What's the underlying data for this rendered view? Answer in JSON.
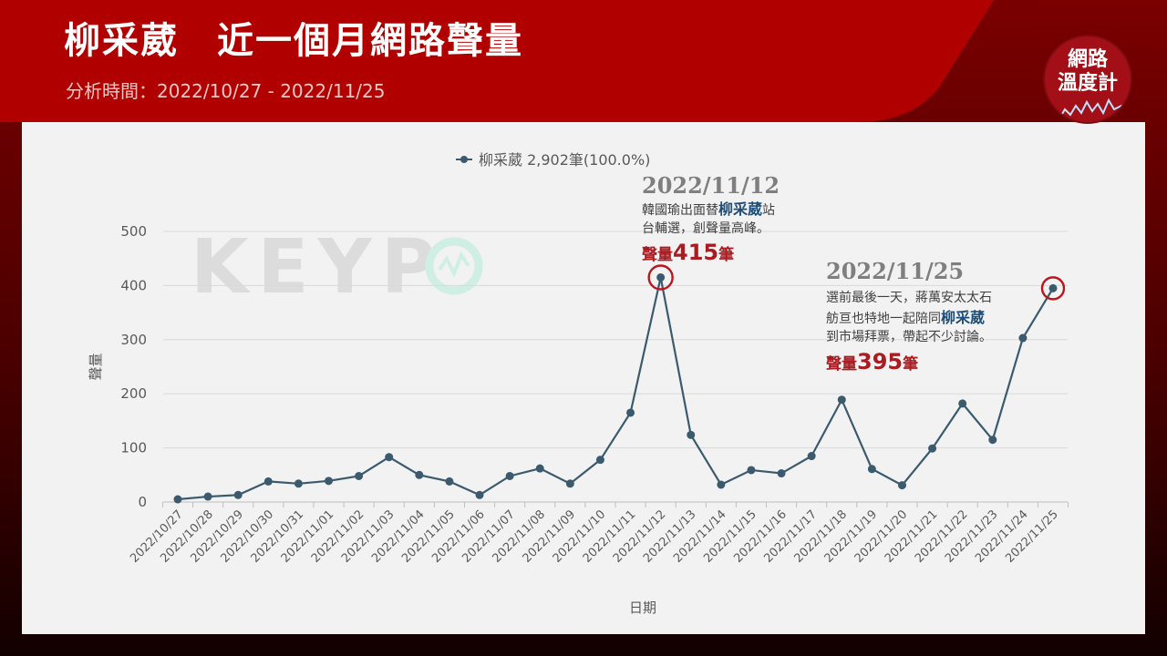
{
  "header": {
    "title": "柳采葳　近一個月網路聲量",
    "subtitle": "分析時間：2022/10/27 - 2022/11/25"
  },
  "badge": {
    "line1": "網路",
    "line2": "溫度計"
  },
  "watermark": {
    "text": "KEYP"
  },
  "colors": {
    "header_red": "#b00000",
    "line": "#3b5a6e",
    "circle": "#c0141c",
    "highlight": "#1f4e79",
    "value": "#a81c22"
  },
  "chart_data": {
    "type": "line",
    "legend": "柳采葳 2,902筆(100.0%)",
    "legend_position": "top-center",
    "xlabel": "日期",
    "ylabel": "聲量",
    "ylim": [
      0,
      500
    ],
    "yticks": [
      0,
      100,
      200,
      300,
      400,
      500
    ],
    "grid": true,
    "categories": [
      "2022/10/27",
      "2022/10/28",
      "2022/10/29",
      "2022/10/30",
      "2022/10/31",
      "2022/11/01",
      "2022/11/02",
      "2022/11/03",
      "2022/11/04",
      "2022/11/05",
      "2022/11/06",
      "2022/11/07",
      "2022/11/08",
      "2022/11/09",
      "2022/11/10",
      "2022/11/11",
      "2022/11/12",
      "2022/11/13",
      "2022/11/14",
      "2022/11/15",
      "2022/11/16",
      "2022/11/17",
      "2022/11/18",
      "2022/11/19",
      "2022/11/20",
      "2022/11/21",
      "2022/11/22",
      "2022/11/23",
      "2022/11/24",
      "2022/11/25"
    ],
    "series": [
      {
        "name": "柳采葳",
        "values": [
          5,
          10,
          13,
          38,
          34,
          39,
          48,
          83,
          50,
          38,
          13,
          48,
          62,
          34,
          78,
          165,
          415,
          124,
          32,
          59,
          53,
          85,
          189,
          61,
          31,
          99,
          182,
          115,
          303,
          395
        ]
      }
    ],
    "annotations": [
      {
        "category": "2022/11/12",
        "date": "2022/11/12",
        "lines": [
          {
            "parts": [
              "韓國瑜出面替",
              "柳采葳",
              "站"
            ]
          },
          {
            "parts": [
              "台輔選，創聲量高峰。"
            ]
          }
        ],
        "value_label": "聲量",
        "value": "415",
        "value_suffix": "筆"
      },
      {
        "category": "2022/11/25",
        "date": "2022/11/25",
        "lines": [
          {
            "parts": [
              "選前最後一天，蔣萬安太太石"
            ]
          },
          {
            "parts": [
              "舫亘也特地一起陪同",
              "柳采葳"
            ]
          },
          {
            "parts": [
              "到市場拜票，帶起不少討論。"
            ]
          }
        ],
        "value_label": "聲量",
        "value": "395",
        "value_suffix": "筆"
      }
    ]
  }
}
